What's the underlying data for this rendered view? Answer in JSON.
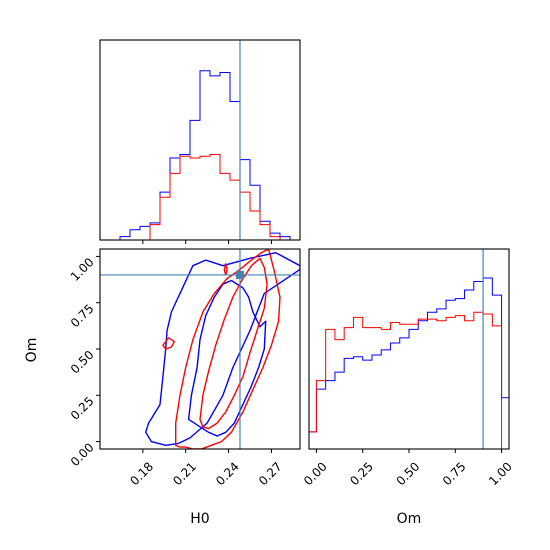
{
  "colors": {
    "series_a": "#0000ff",
    "series_b": "#ff0000",
    "truth": "#4682b4",
    "axes": "#000000"
  },
  "chart_data": {
    "type": "corner",
    "parameters": [
      "H0",
      "Om"
    ],
    "truth": {
      "H0": 0.248,
      "Om": 0.9
    },
    "panels": [
      {
        "id": "h0-hist",
        "type": "histogram",
        "parameter": "H0",
        "xlim": [
          0.15,
          0.29
        ],
        "ylim": [
          0,
          1.17
        ],
        "y_ticks_shown": false,
        "x_tick_labels_shown": false,
        "x_ticks": [
          0.18,
          0.21,
          0.24,
          0.27
        ],
        "bin_edges": [
          0.15,
          0.157,
          0.164,
          0.171,
          0.178,
          0.185,
          0.192,
          0.199,
          0.206,
          0.213,
          0.22,
          0.227,
          0.234,
          0.241,
          0.248,
          0.255,
          0.262,
          0.269,
          0.276,
          0.283,
          0.29
        ],
        "series": [
          {
            "color_key": "series_a",
            "counts": [
              0.0,
              0.0,
              0.02,
              0.06,
              0.08,
              0.1,
              0.28,
              0.48,
              0.5,
              0.7,
              0.99,
              0.96,
              0.98,
              0.81,
              0.47,
              0.32,
              0.11,
              0.04,
              0.02,
              0.0
            ]
          },
          {
            "color_key": "series_b",
            "counts": [
              0.0,
              0.0,
              0.0,
              0.0,
              0.0,
              0.09,
              0.25,
              0.39,
              0.49,
              0.48,
              0.49,
              0.5,
              0.39,
              0.35,
              0.28,
              0.17,
              0.09,
              0.02,
              0.0,
              0.0
            ]
          }
        ]
      },
      {
        "id": "om-vs-h0",
        "type": "contour",
        "x_parameter": "H0",
        "y_parameter": "Om",
        "xlim": [
          0.15,
          0.29
        ],
        "ylim": [
          -0.04,
          1.04
        ],
        "x_ticks": [
          0.18,
          0.21,
          0.24,
          0.27
        ],
        "x_tick_labels": [
          "0.18",
          "0.21",
          "0.24",
          "0.27"
        ],
        "y_ticks": [
          0.0,
          0.25,
          0.5,
          0.75,
          1.0
        ],
        "y_tick_labels": [
          "0.00",
          "0.25",
          "0.50",
          "0.75",
          "1.00"
        ],
        "x_label": "H0",
        "y_label": "Om",
        "contours": [
          {
            "color_key": "series_a",
            "level": "outer",
            "x": [
              0.186,
              0.182,
              0.184,
              0.192,
              0.194,
              0.196,
              0.197,
              0.2,
              0.206,
              0.215,
              0.224,
              0.236,
              0.255,
              0.273,
              0.29,
              0.29,
              0.265,
              0.255,
              0.243,
              0.236,
              0.225,
              0.213,
              0.205,
              0.196,
              0.186
            ],
            "y": [
              0.0,
              0.05,
              0.1,
              0.2,
              0.35,
              0.5,
              0.6,
              0.7,
              0.8,
              0.95,
              0.98,
              0.95,
              0.99,
              1.02,
              0.95,
              0.93,
              0.8,
              0.6,
              0.4,
              0.25,
              0.1,
              0.02,
              -0.01,
              -0.02,
              0.0
            ]
          },
          {
            "color_key": "series_a",
            "level": "inner",
            "x": [
              0.212,
              0.214,
              0.218,
              0.22,
              0.224,
              0.23,
              0.236,
              0.242,
              0.25,
              0.254,
              0.257,
              0.262,
              0.266,
              0.265,
              0.261,
              0.256,
              0.25,
              0.244,
              0.238,
              0.232,
              0.226,
              0.22,
              0.216,
              0.212
            ],
            "y": [
              0.12,
              0.25,
              0.4,
              0.55,
              0.68,
              0.78,
              0.85,
              0.87,
              0.83,
              0.78,
              0.7,
              0.62,
              0.65,
              0.5,
              0.4,
              0.3,
              0.2,
              0.1,
              0.05,
              0.03,
              0.05,
              0.08,
              0.1,
              0.12
            ]
          },
          {
            "color_key": "series_b",
            "level": "outer",
            "x": [
              0.203,
              0.203,
              0.206,
              0.21,
              0.215,
              0.222,
              0.23,
              0.239,
              0.248,
              0.256,
              0.263,
              0.268,
              0.272,
              0.276,
              0.275,
              0.27,
              0.264,
              0.257,
              0.25,
              0.242,
              0.235,
              0.228,
              0.221,
              0.215,
              0.21,
              0.206,
              0.203
            ],
            "y": [
              -0.02,
              0.1,
              0.25,
              0.4,
              0.55,
              0.7,
              0.8,
              0.88,
              0.93,
              0.98,
              1.02,
              1.04,
              0.92,
              0.78,
              0.65,
              0.52,
              0.4,
              0.28,
              0.16,
              0.05,
              0.0,
              -0.02,
              -0.04,
              -0.04,
              -0.03,
              -0.03,
              -0.02
            ]
          },
          {
            "color_key": "series_b",
            "level": "inner",
            "x": [
              0.22,
              0.222,
              0.226,
              0.231,
              0.237,
              0.243,
              0.25,
              0.256,
              0.262,
              0.265,
              0.267,
              0.265,
              0.26,
              0.255,
              0.25,
              0.244,
              0.238,
              0.232,
              0.226,
              0.222,
              0.22
            ],
            "y": [
              0.12,
              0.25,
              0.38,
              0.52,
              0.66,
              0.78,
              0.88,
              0.95,
              0.99,
              0.94,
              0.85,
              0.72,
              0.6,
              0.48,
              0.35,
              0.25,
              0.16,
              0.1,
              0.07,
              0.08,
              0.12
            ]
          },
          {
            "color_key": "series_b",
            "level": "island",
            "x": [
              0.194,
              0.196,
              0.2,
              0.202,
              0.198,
              0.194
            ],
            "y": [
              0.52,
              0.5,
              0.51,
              0.54,
              0.56,
              0.52
            ]
          },
          {
            "color_key": "series_b",
            "level": "island",
            "x": [
              0.237,
              0.238,
              0.239,
              0.238,
              0.237
            ],
            "y": [
              0.93,
              0.9,
              0.93,
              0.96,
              0.93
            ]
          }
        ]
      },
      {
        "id": "om-hist",
        "type": "histogram",
        "parameter": "Om",
        "xlim": [
          -0.04,
          1.04
        ],
        "ylim": [
          0,
          1.17
        ],
        "y_ticks_shown": false,
        "x_ticks": [
          0.0,
          0.25,
          0.5,
          0.75,
          1.0
        ],
        "x_tick_labels": [
          "0.00",
          "0.25",
          "0.50",
          "0.75",
          "1.00"
        ],
        "x_label": "Om",
        "bin_edges": [
          -0.04,
          0.0,
          0.05,
          0.1,
          0.15,
          0.2,
          0.25,
          0.3,
          0.35,
          0.4,
          0.45,
          0.5,
          0.55,
          0.6,
          0.65,
          0.7,
          0.75,
          0.8,
          0.85,
          0.9,
          0.95,
          1.0,
          1.04
        ],
        "series": [
          {
            "color_key": "series_a",
            "counts": [
              0.1,
              0.35,
              0.4,
              0.45,
              0.53,
              0.54,
              0.52,
              0.55,
              0.58,
              0.62,
              0.65,
              0.7,
              0.75,
              0.8,
              0.82,
              0.87,
              0.88,
              0.93,
              0.98,
              1.0,
              0.9,
              0.3
            ]
          },
          {
            "color_key": "series_b",
            "counts": [
              0.1,
              0.4,
              0.7,
              0.64,
              0.71,
              0.77,
              0.71,
              0.71,
              0.7,
              0.74,
              0.73,
              0.73,
              0.76,
              0.76,
              0.75,
              0.77,
              0.78,
              0.75,
              0.8,
              0.79,
              0.72,
              0.0
            ]
          }
        ]
      }
    ]
  }
}
